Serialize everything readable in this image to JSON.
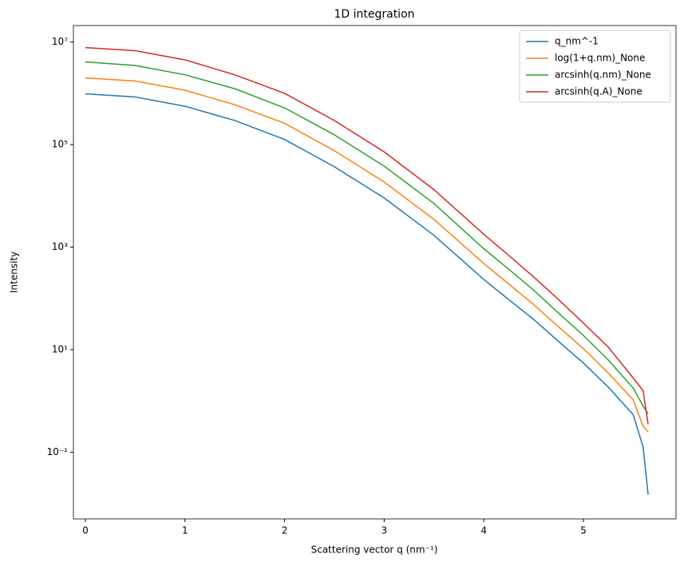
{
  "chart_data": {
    "type": "line",
    "title": "1D integration",
    "xlabel": "Scattering vector q (nm⁻¹)",
    "ylabel": "Intensity",
    "x": [
      0,
      0.5,
      1,
      1.5,
      2,
      2.5,
      3,
      3.5,
      4,
      4.25,
      4.5,
      4.75,
      5,
      5.25,
      5.5,
      5.6,
      5.65
    ],
    "series": [
      {
        "name": "q_nm^-1",
        "color": "#1f77b4",
        "values": [
          980000,
          850000,
          560000,
          295000,
          126000,
          37000,
          9100,
          1700,
          234,
          95,
          39,
          14.5,
          5.5,
          1.86,
          0.54,
          0.126,
          0.0148
        ]
      },
      {
        "name": "log(1+q.nm)_None",
        "color": "#ff7f0e",
        "values": [
          2000000,
          1740000,
          1150000,
          600000,
          260000,
          76000,
          18600,
          3470,
          479,
          191,
          76,
          28,
          10.5,
          3.5,
          1.05,
          0.32,
          0.25
        ]
      },
      {
        "name": "arcsinh(q.nm)_None",
        "color": "#2ca02c",
        "values": [
          4100000,
          3500000,
          2300000,
          1230000,
          520000,
          155000,
          38000,
          7100,
          933,
          372,
          145,
          52,
          19,
          6.3,
          1.78,
          0.79,
          0.56
        ]
      },
      {
        "name": "arcsinh(q.A)_None",
        "color": "#d62728",
        "values": [
          7800000,
          6800000,
          4500000,
          2300000,
          1000000,
          295000,
          72000,
          13200,
          1780,
          692,
          263,
          95,
          33,
          11.2,
          2.8,
          1.58,
          0.35
        ]
      }
    ],
    "xlim": [
      -0.12,
      5.93
    ],
    "xticks": [
      0,
      1,
      2,
      3,
      4,
      5
    ],
    "ylim": [
      0.005,
      21000000
    ],
    "ylog": true,
    "yticks": [
      {
        "value": 0.1,
        "label": "10⁻¹"
      },
      {
        "value": 10,
        "label": "10¹"
      },
      {
        "value": 1000,
        "label": "10³"
      },
      {
        "value": 100000,
        "label": "10⁵"
      },
      {
        "value": 10000000,
        "label": "10⁷"
      }
    ],
    "legend": "upper right"
  }
}
